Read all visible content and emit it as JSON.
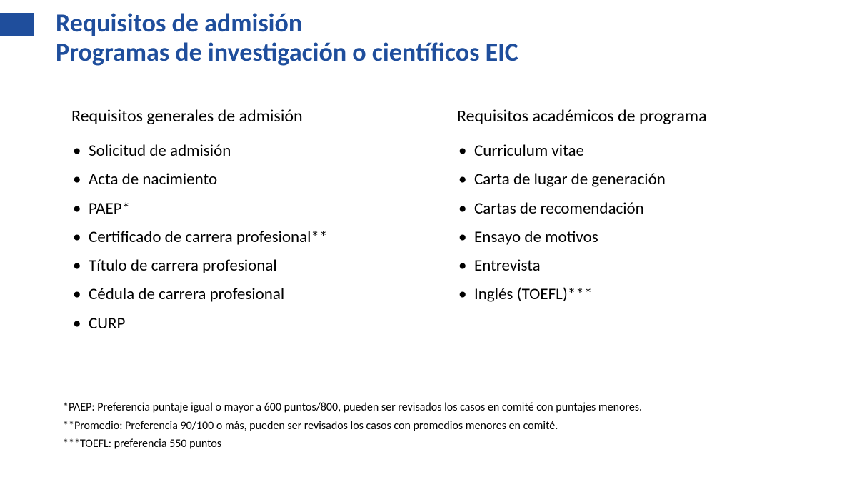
{
  "accent_color": "#1f4e9c",
  "title": {
    "line1": "Requisitos de admisión",
    "line2": "Programas de investigación o científicos EIC"
  },
  "left_column": {
    "heading": "Requisitos generales de admisión",
    "items": [
      "Solicitud de admisión",
      "Acta de nacimiento",
      "PAEP*",
      "Certificado de carrera profesional**",
      "Título de carrera profesional",
      "Cédula de carrera profesional",
      "CURP"
    ]
  },
  "right_column": {
    "heading": "Requisitos académicos de programa",
    "items": [
      "Curriculum vitae",
      "Carta de lugar de  generación",
      "Cartas de recomendación",
      "Ensayo de motivos",
      "Entrevista",
      "Inglés (TOEFL)***"
    ]
  },
  "footnotes": [
    "*PAEP: Preferencia puntaje igual o mayor a 600 puntos/800, pueden ser revisados los casos en comité con puntajes menores.",
    "**Promedio: Preferencia 90/100 o más, pueden ser revisados los casos con promedios menores en comité.",
    "***TOEFL: preferencia 550 puntos"
  ]
}
